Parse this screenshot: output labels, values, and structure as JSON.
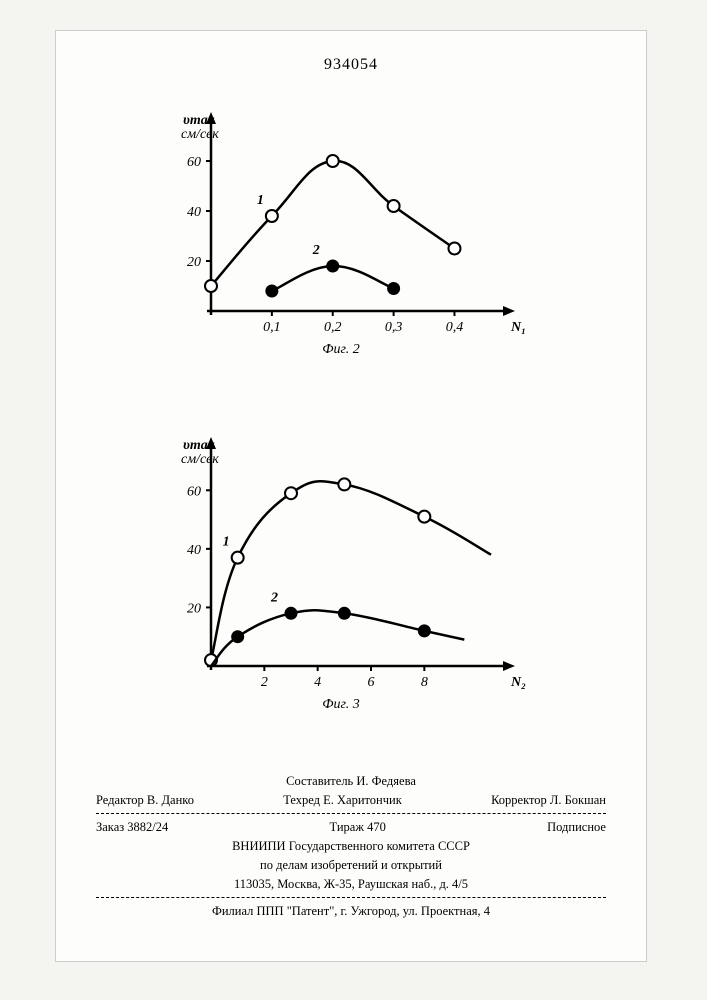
{
  "doc_number": "934054",
  "chart1": {
    "ylabel_top": "υmax",
    "ylabel_unit": "см/сек",
    "xlabel": "N₁",
    "caption": "Фиг. 2",
    "yticks": [
      20,
      40,
      60
    ],
    "xticks": [
      "0,1",
      "0,2",
      "0,3",
      "0,4"
    ],
    "xlim": [
      0,
      0.46
    ],
    "ylim": [
      0,
      70
    ],
    "series1": {
      "label": "1",
      "marker": "open",
      "points": [
        [
          0,
          10
        ],
        [
          0.1,
          38
        ],
        [
          0.2,
          60
        ],
        [
          0.3,
          42
        ],
        [
          0.4,
          25
        ]
      ]
    },
    "series2": {
      "label": "2",
      "marker": "closed",
      "points": [
        [
          0.1,
          8
        ],
        [
          0.2,
          18
        ],
        [
          0.3,
          9
        ]
      ]
    }
  },
  "chart2": {
    "ylabel_top": "υmax",
    "ylabel_unit": "см/сек",
    "xlabel": "N₂",
    "caption": "Фиг. 3",
    "yticks": [
      20,
      40,
      60
    ],
    "xticks": [
      2,
      4,
      6,
      8
    ],
    "xlim": [
      0,
      10.5
    ],
    "ylim": [
      0,
      70
    ],
    "series1": {
      "label": "1",
      "marker": "open",
      "points": [
        [
          0,
          2
        ],
        [
          1,
          37
        ],
        [
          3,
          59
        ],
        [
          5,
          62
        ],
        [
          8,
          51
        ]
      ],
      "curve_end": [
        10.5,
        38
      ]
    },
    "series2": {
      "label": "2",
      "marker": "closed",
      "points": [
        [
          0,
          0
        ],
        [
          1,
          10
        ],
        [
          3,
          18
        ],
        [
          5,
          18
        ],
        [
          8,
          12
        ]
      ],
      "curve_end": [
        9.5,
        9
      ]
    }
  },
  "footer": {
    "compiler": "Составитель И. Федяева",
    "editor_label": "Редактор В. Данко",
    "techred": "Техред Е. Харитончик",
    "corrector": "Корректор Л. Бокшан",
    "order": "Заказ 3882/24",
    "circulation": "Тираж 470",
    "subscription": "Подписное",
    "org1": "ВНИИПИ Государственного комитета СССР",
    "org2": "по делам изобретений и открытий",
    "addr1": "113035, Москва, Ж-35, Раушская наб., д. 4/5",
    "branch": "Филиал ППП \"Патент\", г. Ужгород, ул. Проектная, 4"
  }
}
